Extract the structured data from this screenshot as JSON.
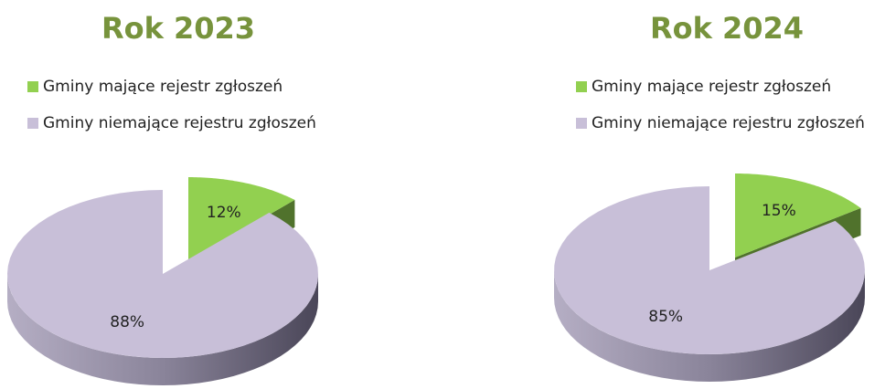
{
  "chart_data": [
    {
      "type": "pie",
      "title": "Rok 2023",
      "categories": [
        "Gminy mające rejestr zgłoszeń",
        "Gminy niemające rejestru zgłoszeń"
      ],
      "values": [
        12,
        88
      ],
      "value_labels": [
        "12%",
        "88%"
      ],
      "colors": [
        "#92d050",
        "#c8bfd8"
      ]
    },
    {
      "type": "pie",
      "title": "Rok 2024",
      "categories": [
        "Gminy mające rejestr zgłoszeń",
        "Gminy niemające rejestru zgłoszeń"
      ],
      "values": [
        15,
        85
      ],
      "value_labels": [
        "15%",
        "85%"
      ],
      "colors": [
        "#92d050",
        "#c8bfd8"
      ]
    }
  ]
}
